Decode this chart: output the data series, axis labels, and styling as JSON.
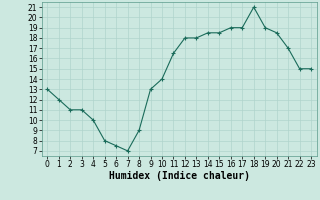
{
  "x": [
    0,
    1,
    2,
    3,
    4,
    5,
    6,
    7,
    8,
    9,
    10,
    11,
    12,
    13,
    14,
    15,
    16,
    17,
    18,
    19,
    20,
    21,
    22,
    23
  ],
  "y": [
    13,
    12,
    11,
    11,
    10,
    8,
    7.5,
    7,
    9,
    13,
    14,
    16.5,
    18,
    18,
    18.5,
    18.5,
    19,
    19,
    21,
    19,
    18.5,
    17,
    15,
    15
  ],
  "xlabel": "Humidex (Indice chaleur)",
  "xlim": [
    -0.5,
    23.5
  ],
  "ylim": [
    6.5,
    21.5
  ],
  "yticks": [
    7,
    8,
    9,
    10,
    11,
    12,
    13,
    14,
    15,
    16,
    17,
    18,
    19,
    20,
    21
  ],
  "xticks": [
    0,
    1,
    2,
    3,
    4,
    5,
    6,
    7,
    8,
    9,
    10,
    11,
    12,
    13,
    14,
    15,
    16,
    17,
    18,
    19,
    20,
    21,
    22,
    23
  ],
  "line_color": "#1a6b5a",
  "marker": "+",
  "bg_color": "#cce8e0",
  "grid_color": "#b0d4cc",
  "label_fontsize": 7,
  "tick_fontsize": 5.5
}
